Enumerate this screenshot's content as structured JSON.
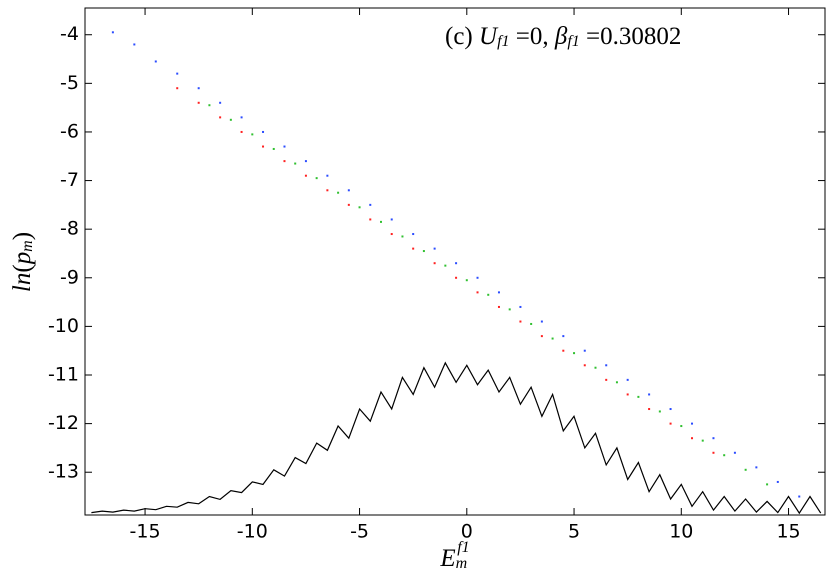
{
  "chart_data": {
    "type": "scatter",
    "annotation": [
      {
        "text": "(c) "
      },
      {
        "italic": "U"
      },
      {
        "sub": "f1"
      },
      {
        "text": " =0, "
      },
      {
        "italic": "β"
      },
      {
        "sub": "f1"
      },
      {
        "text": " =0.30802"
      }
    ],
    "y_label": [
      {
        "italic": "ln"
      },
      {
        "text": "("
      },
      {
        "italic": "p"
      },
      {
        "sub": "m"
      },
      {
        "text": ")"
      }
    ],
    "x_label": [
      {
        "italic": "E"
      },
      {
        "sub": "m"
      },
      {
        "sup": "f1"
      }
    ],
    "xlim": [
      -17.8,
      16.7
    ],
    "ylim": [
      -13.88,
      -3.45
    ],
    "xticks": [
      -15,
      -10,
      -5,
      0,
      5,
      10,
      15
    ],
    "yticks": [
      -13,
      -12,
      -11,
      -10,
      -9,
      -8,
      -7,
      -6,
      -5,
      -4
    ],
    "series": [
      {
        "color": "#2b4cff",
        "x": [
          -16.5,
          -15.5,
          -14.5,
          -13.5,
          -12.5,
          -11.5,
          -10.5,
          -9.5,
          -8.5,
          -7.5,
          -6.5,
          -5.5,
          -4.5,
          -3.5,
          -2.5,
          -1.5,
          -0.5,
          0.5,
          1.5,
          2.5,
          3.5,
          4.5,
          5.5,
          6.5,
          7.5,
          8.5,
          9.5,
          10.5,
          11.5,
          12.5,
          13.5,
          14.5,
          15.5
        ],
        "y": [
          -3.95,
          -4.2,
          -4.55,
          -4.8,
          -5.1,
          -5.4,
          -5.7,
          -6.0,
          -6.3,
          -6.6,
          -6.9,
          -7.2,
          -7.5,
          -7.8,
          -8.1,
          -8.4,
          -8.7,
          -9.0,
          -9.3,
          -9.6,
          -9.9,
          -10.2,
          -10.5,
          -10.8,
          -11.1,
          -11.4,
          -11.7,
          -12.0,
          -12.3,
          -12.6,
          -12.9,
          -13.2,
          -13.5
        ]
      },
      {
        "color": "#ff2020",
        "x": [
          -13.5,
          -12.5,
          -11.5,
          -10.5,
          -9.5,
          -8.5,
          -7.5,
          -6.5,
          -5.5,
          -4.5,
          -3.5,
          -2.5,
          -1.5,
          -0.5,
          0.5,
          1.5,
          2.5,
          3.5,
          4.5,
          5.5,
          6.5,
          7.5,
          8.5,
          9.5,
          10.5,
          11.5
        ],
        "y": [
          -5.1,
          -5.4,
          -5.7,
          -6.0,
          -6.3,
          -6.6,
          -6.9,
          -7.2,
          -7.5,
          -7.8,
          -8.1,
          -8.4,
          -8.7,
          -9.0,
          -9.3,
          -9.6,
          -9.9,
          -10.2,
          -10.5,
          -10.8,
          -11.1,
          -11.4,
          -11.7,
          -12.0,
          -12.3,
          -12.6
        ]
      },
      {
        "color": "#30c030",
        "x": [
          -12,
          -11,
          -10,
          -9,
          -8,
          -7,
          -6,
          -5,
          -4,
          -3,
          -2,
          -1,
          0,
          1,
          2,
          3,
          4,
          5,
          6,
          7,
          8,
          9,
          10,
          11,
          12,
          13,
          14
        ],
        "y": [
          -5.45,
          -5.75,
          -6.05,
          -6.35,
          -6.65,
          -6.95,
          -7.25,
          -7.55,
          -7.85,
          -8.15,
          -8.45,
          -8.75,
          -9.05,
          -9.35,
          -9.65,
          -9.95,
          -10.25,
          -10.55,
          -10.85,
          -11.15,
          -11.45,
          -11.75,
          -12.05,
          -12.35,
          -12.65,
          -12.95,
          -13.25
        ]
      }
    ],
    "line": {
      "color": "#000000",
      "x": [
        -17.5,
        -17,
        -16.5,
        -16,
        -15.5,
        -15,
        -14.5,
        -14,
        -13.5,
        -13,
        -12.5,
        -12,
        -11.5,
        -11,
        -10.5,
        -10,
        -9.5,
        -9,
        -8.5,
        -8,
        -7.5,
        -7,
        -6.5,
        -6,
        -5.5,
        -5,
        -4.5,
        -4,
        -3.5,
        -3,
        -2.5,
        -2,
        -1.5,
        -1,
        -0.5,
        0,
        0.5,
        1,
        1.5,
        2,
        2.5,
        3,
        3.5,
        4,
        4.5,
        5,
        5.5,
        6,
        6.5,
        7,
        7.5,
        8,
        8.5,
        9,
        9.5,
        10,
        10.5,
        11,
        11.5,
        12,
        12.5,
        13,
        13.5,
        14,
        14.5,
        15,
        15.5,
        16,
        16.5
      ],
      "y": [
        -13.83,
        -13.8,
        -13.82,
        -13.78,
        -13.8,
        -13.75,
        -13.77,
        -13.7,
        -13.72,
        -13.62,
        -13.65,
        -13.5,
        -13.56,
        -13.38,
        -13.42,
        -13.2,
        -13.25,
        -12.95,
        -13.08,
        -12.7,
        -12.82,
        -12.4,
        -12.55,
        -12.05,
        -12.3,
        -11.7,
        -11.95,
        -11.35,
        -11.7,
        -11.05,
        -11.4,
        -10.85,
        -11.25,
        -10.75,
        -11.15,
        -10.8,
        -11.2,
        -10.9,
        -11.35,
        -11.05,
        -11.6,
        -11.25,
        -11.85,
        -11.4,
        -12.15,
        -11.85,
        -12.5,
        -12.2,
        -12.85,
        -12.5,
        -13.15,
        -12.8,
        -13.4,
        -13.05,
        -13.55,
        -13.25,
        -13.7,
        -13.4,
        -13.78,
        -13.5,
        -13.8,
        -13.55,
        -13.82,
        -13.6,
        -13.83,
        -13.5,
        -13.84,
        -13.5,
        -13.84
      ]
    }
  }
}
